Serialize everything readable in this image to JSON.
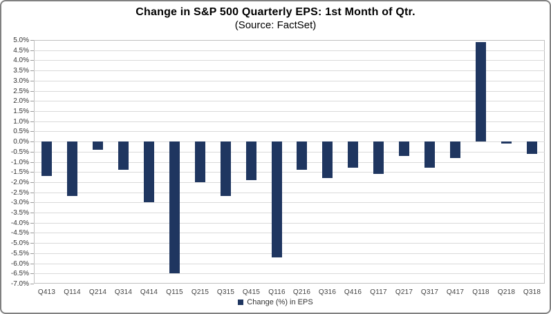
{
  "header": {
    "title": "Change in S&P 500 Quarterly EPS: 1st Month of Qtr.",
    "subtitle": "(Source: FactSet)"
  },
  "legend": {
    "label": "Change (%) in EPS"
  },
  "colors": {
    "bar": "#1f3660",
    "gridline": "#d9d9d9",
    "plot_border": "#bfbfbf",
    "outer_border": "#808080",
    "title_text": "#000000",
    "axis_text": "#404040"
  },
  "chart_data": {
    "type": "bar",
    "title": "Change in S&P 500 Quarterly EPS: 1st Month of Qtr.",
    "subtitle": "(Source: FactSet)",
    "categories": [
      "Q413",
      "Q114",
      "Q214",
      "Q314",
      "Q414",
      "Q115",
      "Q215",
      "Q315",
      "Q415",
      "Q116",
      "Q216",
      "Q316",
      "Q416",
      "Q117",
      "Q217",
      "Q317",
      "Q417",
      "Q118",
      "Q218",
      "Q318"
    ],
    "values": [
      -1.7,
      -2.7,
      -0.4,
      -1.4,
      -3.0,
      -6.5,
      -2.0,
      -2.7,
      -1.9,
      -5.7,
      -1.4,
      -1.8,
      -1.3,
      -1.6,
      -0.7,
      -1.3,
      -0.8,
      4.9,
      -0.1,
      -0.6
    ],
    "series_name": "Change (%) in EPS",
    "xlabel": "",
    "ylabel": "",
    "ylim": [
      -7.0,
      5.0
    ],
    "ytick_step": 0.5,
    "y_tick_labels": [
      "5.0%",
      "4.5%",
      "4.0%",
      "3.5%",
      "3.0%",
      "2.5%",
      "2.0%",
      "1.5%",
      "1.0%",
      "0.5%",
      "0.0%",
      "-0.5%",
      "-1.0%",
      "-1.5%",
      "-2.0%",
      "-2.5%",
      "-3.0%",
      "-3.5%",
      "-4.0%",
      "-4.5%",
      "-5.0%",
      "-5.5%",
      "-6.0%",
      "-6.5%",
      "-7.0%"
    ],
    "grid": true,
    "legend_position": "bottom-center",
    "bar_color": "#1f3660"
  }
}
